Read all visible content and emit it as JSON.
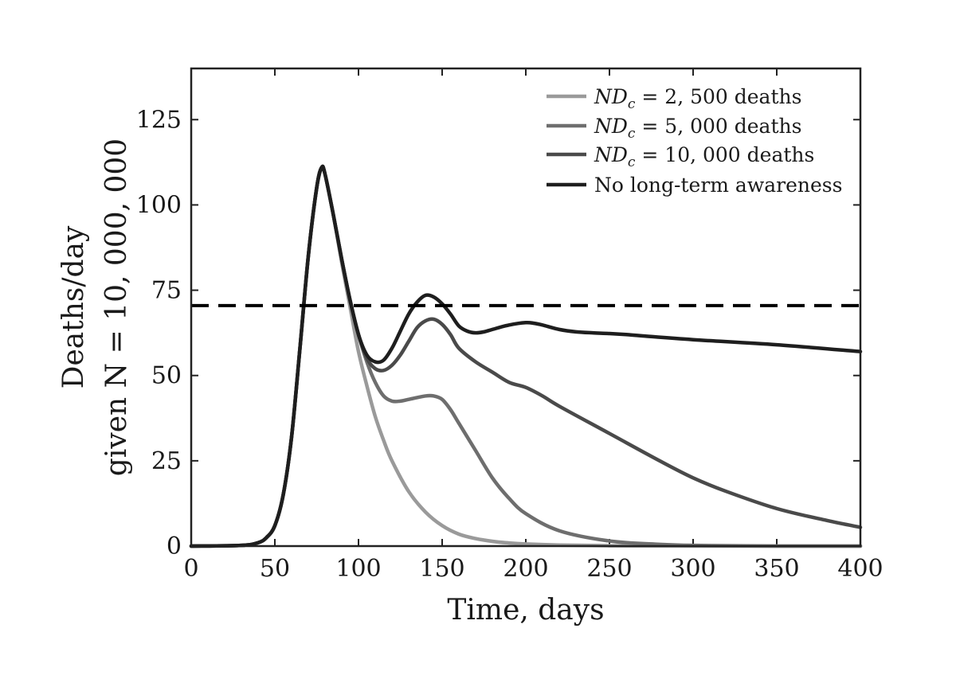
{
  "chart_data": {
    "type": "line",
    "xlabel": "Time, days",
    "ylabel_line1": "Deaths/day",
    "ylabel_line2": "given N = 10, 000, 000",
    "xlim": [
      0,
      400
    ],
    "ylim": [
      0,
      140
    ],
    "xticks": [
      0,
      50,
      100,
      150,
      200,
      250,
      300,
      350,
      400
    ],
    "yticks": [
      0,
      25,
      50,
      75,
      100,
      125
    ],
    "grid": false,
    "legend_position": "top-right",
    "threshold": {
      "y": 70.5,
      "style": "dashed",
      "color": "#000000"
    },
    "series": [
      {
        "name": "ND_c = 2, 500 deaths",
        "legend_math": "ND",
        "legend_sub": "c",
        "legend_rest": " = 2, 500 deaths",
        "color": "#9a9a9a",
        "x": [
          0,
          30,
          40,
          45,
          50,
          55,
          60,
          65,
          70,
          75,
          78,
          80,
          85,
          90,
          95,
          100,
          105,
          110,
          115,
          120,
          130,
          140,
          150,
          160,
          170,
          180,
          190,
          200,
          220,
          250,
          300,
          350,
          400
        ],
        "y": [
          0,
          0.2,
          1,
          2.5,
          6,
          15,
          32,
          58,
          85,
          105,
          111,
          109,
          97,
          83,
          70,
          57,
          47,
          38,
          31,
          25,
          16,
          10,
          6,
          3.5,
          2.2,
          1.4,
          0.9,
          0.6,
          0.3,
          0.1,
          0,
          0,
          0
        ]
      },
      {
        "name": "ND_c = 5, 000 deaths",
        "legend_math": "ND",
        "legend_sub": "c",
        "legend_rest": " = 5, 000 deaths",
        "color": "#6e6e6e",
        "x": [
          0,
          30,
          40,
          45,
          50,
          55,
          60,
          65,
          70,
          75,
          78,
          80,
          85,
          90,
          95,
          100,
          105,
          110,
          115,
          120,
          125,
          130,
          140,
          145,
          150,
          155,
          160,
          170,
          180,
          190,
          200,
          220,
          250,
          280,
          300,
          350,
          400
        ],
        "y": [
          0,
          0.2,
          1,
          2.5,
          6,
          15,
          32,
          58,
          85,
          105,
          111,
          109,
          97,
          84,
          72,
          62,
          54,
          48,
          44,
          42.5,
          42.5,
          43,
          44,
          44,
          43,
          40,
          36,
          28,
          20,
          14,
          9.5,
          4.5,
          1.5,
          0.5,
          0.2,
          0,
          0
        ]
      },
      {
        "name": "ND_c = 10, 000 deaths",
        "legend_math": "ND",
        "legend_sub": "c",
        "legend_rest": " = 10, 000 deaths",
        "color": "#4a4a4a",
        "x": [
          0,
          30,
          40,
          45,
          50,
          55,
          60,
          65,
          70,
          75,
          78,
          80,
          85,
          90,
          95,
          100,
          105,
          110,
          115,
          120,
          125,
          130,
          135,
          140,
          145,
          150,
          155,
          160,
          170,
          180,
          190,
          200,
          210,
          220,
          250,
          280,
          300,
          320,
          350,
          380,
          400
        ],
        "y": [
          0,
          0.2,
          1,
          2.5,
          6,
          15,
          32,
          58,
          85,
          105,
          111,
          109,
          97,
          84,
          72,
          62,
          55,
          52,
          51.5,
          53,
          56,
          60,
          64,
          66,
          66.5,
          65,
          62,
          58,
          54,
          51,
          48,
          46.5,
          44,
          41,
          33,
          25,
          20,
          16,
          11,
          7.5,
          5.5
        ]
      },
      {
        "name": "No long-term awareness",
        "color": "#1e1e1e",
        "x": [
          0,
          30,
          40,
          45,
          50,
          55,
          60,
          65,
          70,
          75,
          78,
          80,
          85,
          90,
          95,
          100,
          105,
          110,
          115,
          120,
          125,
          130,
          135,
          140,
          145,
          150,
          155,
          160,
          165,
          170,
          175,
          180,
          190,
          200,
          205,
          210,
          220,
          230,
          240,
          250,
          260,
          270,
          300,
          350,
          400
        ],
        "y": [
          0,
          0.2,
          1,
          2.5,
          6,
          15,
          32,
          58,
          85,
          105,
          111,
          109,
          97,
          84,
          72,
          62,
          56,
          54,
          54.5,
          58,
          63,
          68,
          71.5,
          73.5,
          73,
          71,
          68,
          64.5,
          63,
          62.5,
          62.8,
          63.5,
          64.8,
          65.5,
          65.3,
          64.8,
          63.5,
          62.8,
          62.5,
          62.3,
          62,
          61.6,
          60.5,
          59,
          57
        ]
      }
    ]
  }
}
